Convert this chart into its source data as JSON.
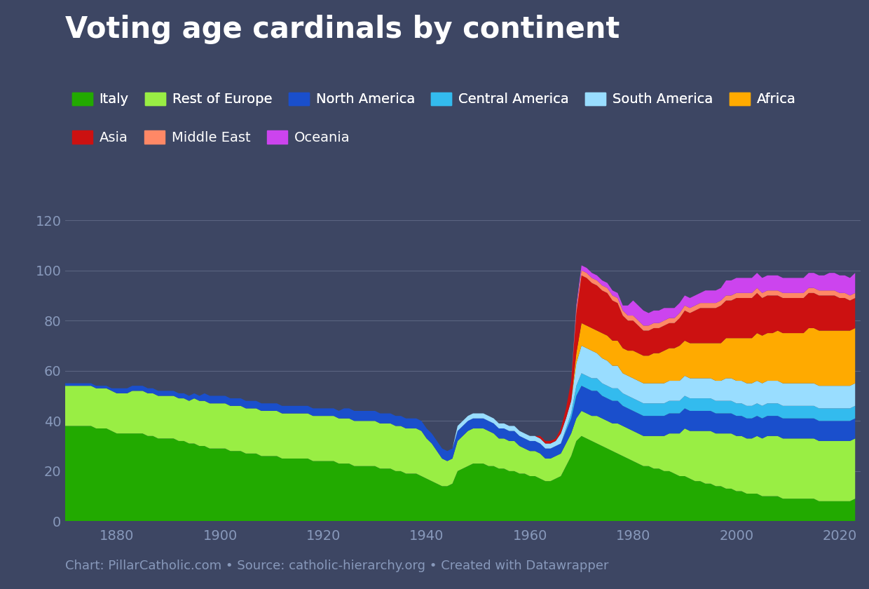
{
  "title": "Voting age cardinals by continent",
  "footer": "Chart: PillarCatholic.com • Source: catholic-hierarchy.org • Created with Datawrapper",
  "bg_color": "#3d4663",
  "plot_bg_color": "#3d4663",
  "text_color": "#ffffff",
  "grid_color": "#5a6480",
  "tick_color": "#8899bb",
  "regions": [
    "Italy",
    "Rest of Europe",
    "North America",
    "Central America",
    "South America",
    "Africa",
    "Asia",
    "Middle East",
    "Oceania"
  ],
  "colors": [
    "#22aa00",
    "#99ee44",
    "#1a4fcc",
    "#33bbee",
    "#99ddff",
    "#ffaa00",
    "#cc1111",
    "#ff8866",
    "#cc44ee"
  ],
  "years": [
    1870,
    1871,
    1872,
    1873,
    1874,
    1875,
    1876,
    1877,
    1878,
    1879,
    1880,
    1881,
    1882,
    1883,
    1884,
    1885,
    1886,
    1887,
    1888,
    1889,
    1890,
    1891,
    1892,
    1893,
    1894,
    1895,
    1896,
    1897,
    1898,
    1899,
    1900,
    1901,
    1902,
    1903,
    1904,
    1905,
    1906,
    1907,
    1908,
    1909,
    1910,
    1911,
    1912,
    1913,
    1914,
    1915,
    1916,
    1917,
    1918,
    1919,
    1920,
    1921,
    1922,
    1923,
    1924,
    1925,
    1926,
    1927,
    1928,
    1929,
    1930,
    1931,
    1932,
    1933,
    1934,
    1935,
    1936,
    1937,
    1938,
    1939,
    1940,
    1941,
    1942,
    1943,
    1944,
    1945,
    1946,
    1947,
    1948,
    1949,
    1950,
    1951,
    1952,
    1953,
    1954,
    1955,
    1956,
    1957,
    1958,
    1959,
    1960,
    1961,
    1962,
    1963,
    1964,
    1965,
    1966,
    1967,
    1968,
    1969,
    1970,
    1971,
    1972,
    1973,
    1974,
    1975,
    1976,
    1977,
    1978,
    1979,
    1980,
    1981,
    1982,
    1983,
    1984,
    1985,
    1986,
    1987,
    1988,
    1989,
    1990,
    1991,
    1992,
    1993,
    1994,
    1995,
    1996,
    1997,
    1998,
    1999,
    2000,
    2001,
    2002,
    2003,
    2004,
    2005,
    2006,
    2007,
    2008,
    2009,
    2010,
    2011,
    2012,
    2013,
    2014,
    2015,
    2016,
    2017,
    2018,
    2019,
    2020,
    2021,
    2022,
    2023
  ],
  "data": {
    "Italy": [
      38,
      38,
      38,
      38,
      38,
      38,
      37,
      37,
      37,
      36,
      35,
      35,
      35,
      35,
      35,
      35,
      34,
      34,
      33,
      33,
      33,
      33,
      32,
      32,
      31,
      31,
      30,
      30,
      29,
      29,
      29,
      29,
      28,
      28,
      28,
      27,
      27,
      27,
      26,
      26,
      26,
      26,
      25,
      25,
      25,
      25,
      25,
      25,
      24,
      24,
      24,
      24,
      24,
      23,
      23,
      23,
      22,
      22,
      22,
      22,
      22,
      21,
      21,
      21,
      20,
      20,
      19,
      19,
      19,
      18,
      17,
      16,
      15,
      14,
      14,
      15,
      20,
      21,
      22,
      23,
      23,
      23,
      22,
      22,
      21,
      21,
      20,
      20,
      19,
      19,
      18,
      18,
      17,
      16,
      16,
      17,
      18,
      22,
      26,
      32,
      34,
      33,
      32,
      31,
      30,
      29,
      28,
      27,
      26,
      25,
      24,
      23,
      22,
      22,
      21,
      21,
      20,
      20,
      19,
      18,
      18,
      17,
      16,
      16,
      15,
      15,
      14,
      14,
      13,
      13,
      12,
      12,
      11,
      11,
      11,
      10,
      10,
      10,
      10,
      9,
      9,
      9,
      9,
      9,
      9,
      9,
      8,
      8,
      8,
      8,
      8,
      8,
      8,
      9
    ],
    "Rest of Europe": [
      16,
      16,
      16,
      16,
      16,
      16,
      16,
      16,
      16,
      16,
      16,
      16,
      16,
      17,
      17,
      17,
      17,
      17,
      17,
      17,
      17,
      17,
      17,
      17,
      17,
      18,
      18,
      18,
      18,
      18,
      18,
      18,
      18,
      18,
      18,
      18,
      18,
      18,
      18,
      18,
      18,
      18,
      18,
      18,
      18,
      18,
      18,
      18,
      18,
      18,
      18,
      18,
      18,
      18,
      18,
      18,
      18,
      18,
      18,
      18,
      18,
      18,
      18,
      18,
      18,
      18,
      18,
      18,
      18,
      18,
      16,
      15,
      13,
      11,
      10,
      10,
      12,
      13,
      14,
      14,
      14,
      14,
      14,
      13,
      12,
      12,
      12,
      12,
      11,
      10,
      10,
      10,
      10,
      9,
      9,
      9,
      9,
      9,
      9,
      9,
      10,
      10,
      10,
      11,
      11,
      11,
      11,
      12,
      12,
      12,
      12,
      12,
      12,
      12,
      13,
      13,
      14,
      15,
      16,
      17,
      19,
      19,
      20,
      20,
      21,
      21,
      21,
      21,
      22,
      22,
      22,
      22,
      22,
      22,
      23,
      23,
      24,
      24,
      24,
      24,
      24,
      24,
      24,
      24,
      24,
      24,
      24,
      24,
      24,
      24,
      24,
      24,
      24,
      24
    ],
    "North America": [
      1,
      1,
      1,
      1,
      1,
      1,
      1,
      1,
      1,
      1,
      2,
      2,
      2,
      2,
      2,
      2,
      2,
      2,
      2,
      2,
      2,
      2,
      2,
      2,
      2,
      2,
      2,
      3,
      3,
      3,
      3,
      3,
      3,
      3,
      3,
      3,
      3,
      3,
      3,
      3,
      3,
      3,
      3,
      3,
      3,
      3,
      3,
      3,
      3,
      3,
      3,
      3,
      3,
      3,
      4,
      4,
      4,
      4,
      4,
      4,
      4,
      4,
      4,
      4,
      4,
      4,
      4,
      4,
      4,
      4,
      4,
      4,
      4,
      4,
      4,
      4,
      4,
      4,
      4,
      4,
      4,
      4,
      4,
      4,
      4,
      4,
      4,
      4,
      4,
      4,
      4,
      4,
      4,
      4,
      4,
      4,
      4,
      5,
      6,
      9,
      10,
      10,
      10,
      10,
      9,
      9,
      9,
      9,
      8,
      8,
      8,
      8,
      8,
      8,
      8,
      8,
      8,
      8,
      8,
      8,
      8,
      8,
      8,
      8,
      8,
      8,
      8,
      8,
      8,
      8,
      8,
      8,
      8,
      8,
      8,
      8,
      8,
      8,
      8,
      8,
      8,
      8,
      8,
      8,
      8,
      8,
      8,
      8,
      8,
      8,
      8,
      8,
      8,
      8
    ],
    "Central America": [
      0,
      0,
      0,
      0,
      0,
      0,
      0,
      0,
      0,
      0,
      0,
      0,
      0,
      0,
      0,
      0,
      0,
      0,
      0,
      0,
      0,
      0,
      0,
      0,
      0,
      0,
      0,
      0,
      0,
      0,
      0,
      0,
      0,
      0,
      0,
      0,
      0,
      0,
      0,
      0,
      0,
      0,
      0,
      0,
      0,
      0,
      0,
      0,
      0,
      0,
      0,
      0,
      0,
      0,
      0,
      0,
      0,
      0,
      0,
      0,
      0,
      0,
      0,
      0,
      0,
      0,
      0,
      0,
      0,
      0,
      0,
      0,
      0,
      0,
      0,
      0,
      0,
      0,
      0,
      0,
      0,
      0,
      0,
      0,
      0,
      0,
      0,
      0,
      0,
      0,
      0,
      0,
      0,
      0,
      0,
      0,
      0,
      1,
      2,
      4,
      5,
      5,
      5,
      5,
      5,
      5,
      5,
      5,
      5,
      5,
      5,
      5,
      5,
      5,
      5,
      5,
      5,
      5,
      5,
      5,
      5,
      5,
      5,
      5,
      5,
      5,
      5,
      5,
      5,
      5,
      5,
      5,
      5,
      5,
      5,
      5,
      5,
      5,
      5,
      5,
      5,
      5,
      5,
      5,
      5,
      5,
      5,
      5,
      5,
      5,
      5,
      5,
      5,
      5
    ],
    "South America": [
      0,
      0,
      0,
      0,
      0,
      0,
      0,
      0,
      0,
      0,
      0,
      0,
      0,
      0,
      0,
      0,
      0,
      0,
      0,
      0,
      0,
      0,
      0,
      0,
      0,
      0,
      0,
      0,
      0,
      0,
      0,
      0,
      0,
      0,
      0,
      0,
      0,
      0,
      0,
      0,
      0,
      0,
      0,
      0,
      0,
      0,
      0,
      0,
      0,
      0,
      0,
      0,
      0,
      0,
      0,
      0,
      0,
      0,
      0,
      0,
      0,
      0,
      0,
      0,
      0,
      0,
      0,
      0,
      0,
      0,
      0,
      0,
      0,
      0,
      0,
      0,
      2,
      2,
      2,
      2,
      2,
      2,
      2,
      2,
      2,
      2,
      2,
      2,
      2,
      2,
      2,
      2,
      2,
      2,
      2,
      2,
      4,
      4,
      5,
      9,
      11,
      11,
      11,
      10,
      10,
      10,
      9,
      9,
      8,
      8,
      8,
      8,
      8,
      8,
      8,
      8,
      8,
      8,
      8,
      8,
      8,
      8,
      8,
      8,
      8,
      8,
      8,
      8,
      9,
      9,
      9,
      9,
      9,
      9,
      9,
      9,
      9,
      9,
      9,
      9,
      9,
      9,
      9,
      9,
      9,
      9,
      9,
      9,
      9,
      9,
      9,
      9,
      9,
      9
    ],
    "Africa": [
      0,
      0,
      0,
      0,
      0,
      0,
      0,
      0,
      0,
      0,
      0,
      0,
      0,
      0,
      0,
      0,
      0,
      0,
      0,
      0,
      0,
      0,
      0,
      0,
      0,
      0,
      0,
      0,
      0,
      0,
      0,
      0,
      0,
      0,
      0,
      0,
      0,
      0,
      0,
      0,
      0,
      0,
      0,
      0,
      0,
      0,
      0,
      0,
      0,
      0,
      0,
      0,
      0,
      0,
      0,
      0,
      0,
      0,
      0,
      0,
      0,
      0,
      0,
      0,
      0,
      0,
      0,
      0,
      0,
      0,
      0,
      0,
      0,
      0,
      0,
      0,
      0,
      0,
      0,
      0,
      0,
      0,
      0,
      0,
      0,
      0,
      0,
      0,
      0,
      0,
      0,
      0,
      0,
      0,
      0,
      0,
      0,
      0,
      0,
      4,
      9,
      9,
      9,
      9,
      10,
      10,
      10,
      10,
      10,
      10,
      11,
      11,
      11,
      11,
      12,
      12,
      13,
      13,
      13,
      14,
      14,
      14,
      14,
      14,
      14,
      14,
      15,
      15,
      16,
      16,
      17,
      17,
      18,
      18,
      19,
      19,
      19,
      19,
      20,
      20,
      20,
      20,
      20,
      20,
      22,
      22,
      22,
      22,
      22,
      22,
      22,
      22,
      22,
      22
    ],
    "Asia": [
      0,
      0,
      0,
      0,
      0,
      0,
      0,
      0,
      0,
      0,
      0,
      0,
      0,
      0,
      0,
      0,
      0,
      0,
      0,
      0,
      0,
      0,
      0,
      0,
      0,
      0,
      0,
      0,
      0,
      0,
      0,
      0,
      0,
      0,
      0,
      0,
      0,
      0,
      0,
      0,
      0,
      0,
      0,
      0,
      0,
      0,
      0,
      0,
      0,
      0,
      0,
      0,
      0,
      0,
      0,
      0,
      0,
      0,
      0,
      0,
      0,
      0,
      0,
      0,
      0,
      0,
      0,
      0,
      0,
      0,
      0,
      0,
      0,
      0,
      0,
      0,
      0,
      0,
      0,
      0,
      0,
      0,
      0,
      0,
      0,
      0,
      0,
      0,
      0,
      0,
      0,
      0,
      1,
      1,
      1,
      1,
      2,
      4,
      8,
      16,
      19,
      19,
      18,
      18,
      17,
      17,
      16,
      15,
      13,
      12,
      12,
      11,
      10,
      10,
      10,
      10,
      10,
      10,
      10,
      11,
      12,
      12,
      13,
      14,
      14,
      14,
      14,
      15,
      15,
      15,
      16,
      16,
      16,
      16,
      16,
      15,
      15,
      15,
      14,
      14,
      14,
      14,
      14,
      14,
      14,
      14,
      14,
      14,
      14,
      14,
      13,
      13,
      12,
      12
    ],
    "Middle East": [
      0,
      0,
      0,
      0,
      0,
      0,
      0,
      0,
      0,
      0,
      0,
      0,
      0,
      0,
      0,
      0,
      0,
      0,
      0,
      0,
      0,
      0,
      0,
      0,
      0,
      0,
      0,
      0,
      0,
      0,
      0,
      0,
      0,
      0,
      0,
      0,
      0,
      0,
      0,
      0,
      0,
      0,
      0,
      0,
      0,
      0,
      0,
      0,
      0,
      0,
      0,
      0,
      0,
      0,
      0,
      0,
      0,
      0,
      0,
      0,
      0,
      0,
      0,
      0,
      0,
      0,
      0,
      0,
      0,
      0,
      0,
      0,
      0,
      0,
      0,
      0,
      0,
      0,
      0,
      0,
      0,
      0,
      0,
      0,
      0,
      0,
      0,
      0,
      0,
      0,
      0,
      0,
      0,
      0,
      0,
      0,
      0,
      0,
      0,
      2,
      2,
      2,
      2,
      2,
      2,
      2,
      2,
      2,
      2,
      2,
      2,
      2,
      2,
      2,
      2,
      2,
      2,
      2,
      2,
      2,
      2,
      2,
      2,
      2,
      2,
      2,
      2,
      2,
      2,
      2,
      2,
      2,
      2,
      2,
      2,
      2,
      2,
      2,
      2,
      2,
      2,
      2,
      2,
      2,
      2,
      2,
      2,
      2,
      2,
      2,
      2,
      2,
      2,
      2
    ],
    "Oceania": [
      0,
      0,
      0,
      0,
      0,
      0,
      0,
      0,
      0,
      0,
      0,
      0,
      0,
      0,
      0,
      0,
      0,
      0,
      0,
      0,
      0,
      0,
      0,
      0,
      0,
      0,
      0,
      0,
      0,
      0,
      0,
      0,
      0,
      0,
      0,
      0,
      0,
      0,
      0,
      0,
      0,
      0,
      0,
      0,
      0,
      0,
      0,
      0,
      0,
      0,
      0,
      0,
      0,
      0,
      0,
      0,
      0,
      0,
      0,
      0,
      0,
      0,
      0,
      0,
      0,
      0,
      0,
      0,
      0,
      0,
      0,
      0,
      0,
      0,
      0,
      0,
      0,
      0,
      0,
      0,
      0,
      0,
      0,
      0,
      0,
      0,
      0,
      0,
      0,
      0,
      0,
      0,
      0,
      0,
      0,
      0,
      0,
      0,
      0,
      1,
      2,
      2,
      2,
      2,
      2,
      2,
      2,
      2,
      2,
      4,
      6,
      6,
      6,
      5,
      5,
      5,
      5,
      4,
      4,
      4,
      4,
      4,
      4,
      4,
      5,
      5,
      5,
      5,
      6,
      6,
      6,
      6,
      6,
      6,
      6,
      6,
      6,
      6,
      6,
      6,
      6,
      6,
      6,
      6,
      6,
      6,
      6,
      6,
      7,
      7,
      7,
      7,
      7,
      8
    ]
  },
  "xlim": [
    1870,
    2024
  ],
  "ylim": [
    0,
    135
  ],
  "yticks": [
    0,
    20,
    40,
    60,
    80,
    100,
    120
  ],
  "xticks": [
    1880,
    1900,
    1920,
    1940,
    1960,
    1980,
    2000,
    2020
  ],
  "title_fontsize": 30,
  "footer_fontsize": 13,
  "tick_fontsize": 14,
  "legend_fontsize": 14
}
